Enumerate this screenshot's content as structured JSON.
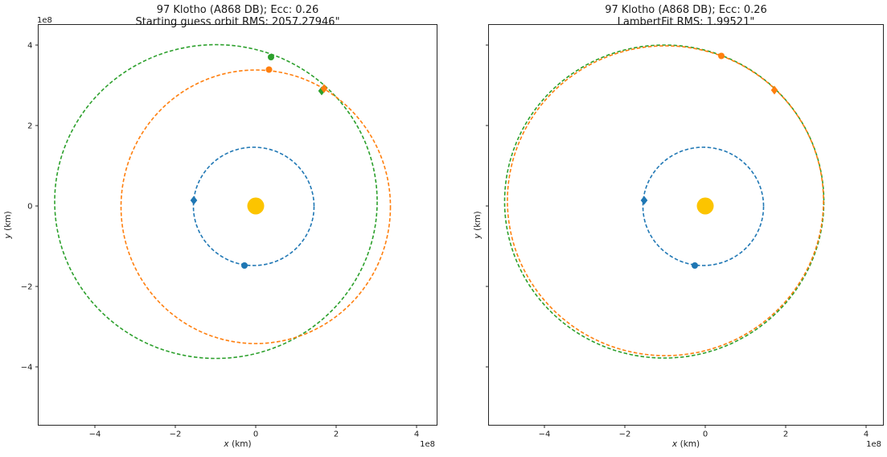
{
  "figure": {
    "background": "#ffffff",
    "asteroid_name": "97 Klotho (A868 DB)",
    "eccentricity": "0.26"
  },
  "chart_data": [
    {
      "type": "scatter",
      "title": [
        "97 Klotho (A868 DB); Ecc: 0.26",
        "Starting guess orbit RMS: 2057.27946\""
      ],
      "xlabel_var": "x",
      "xlabel_unit": "(km)",
      "ylabel_var": "y",
      "ylabel_unit": "(km)",
      "x_offset_label": "1e8",
      "y_offset_label": "1e8",
      "units": "km",
      "units_multiplier": "1e8",
      "grid": false,
      "legend": null,
      "xlim": [
        -5.41,
        4.51
      ],
      "ylim": [
        -5.45,
        4.51
      ],
      "x_ticks": [
        {
          "v": -4,
          "label": "−4"
        },
        {
          "v": -2,
          "label": "−2"
        },
        {
          "v": 0,
          "label": "0"
        },
        {
          "v": 2,
          "label": "2"
        },
        {
          "v": 4,
          "label": "4"
        }
      ],
      "y_ticks": [
        {
          "v": -4,
          "label": "−4"
        },
        {
          "v": -2,
          "label": "−2"
        },
        {
          "v": 0,
          "label": "0"
        },
        {
          "v": 2,
          "label": "2"
        },
        {
          "v": 4,
          "label": "4"
        }
      ],
      "show_y_tick_labels": true,
      "orbits": [
        {
          "name": "earth-orbit",
          "color": "#1f77b4",
          "cx": -0.05,
          "cy": -0.01,
          "rx": 1.5,
          "ry": 1.47
        },
        {
          "name": "true-orbit",
          "color": "#2ca02c",
          "cx": -0.99,
          "cy": 0.11,
          "rx": 4.01,
          "ry": 3.9
        },
        {
          "name": "guess-orbit",
          "color": "#ff7f0e",
          "cx": 0.0,
          "cy": -0.02,
          "rx": 3.35,
          "ry": 3.4
        }
      ],
      "markers": [
        {
          "name": "sun",
          "shape": "sun",
          "color": "#fcc400",
          "x": 0,
          "y": 0
        },
        {
          "name": "earth-obs1-diamond",
          "shape": "diamond",
          "color": "#1f77b4",
          "x": -1.54,
          "y": 0.14
        },
        {
          "name": "earth-obs2-dot",
          "shape": "dot",
          "color": "#1f77b4",
          "x": -0.28,
          "y": -1.48
        },
        {
          "name": "true-orbit-dot",
          "shape": "dot",
          "color": "#2ca02c",
          "x": 0.38,
          "y": 3.7
        },
        {
          "name": "guess-orbit-dot",
          "shape": "dot",
          "color": "#ff7f0e",
          "x": 0.33,
          "y": 3.39
        },
        {
          "name": "true-orbit-diamond",
          "shape": "diamond",
          "color": "#2ca02c",
          "x": 1.64,
          "y": 2.86
        },
        {
          "name": "guess-orbit-diamond",
          "shape": "diamond",
          "color": "#ff7f0e",
          "x": 1.7,
          "y": 2.92
        }
      ]
    },
    {
      "type": "scatter",
      "title": [
        "97 Klotho (A868 DB); Ecc: 0.26",
        "LambertFit RMS: 1.99521\""
      ],
      "xlabel_var": "x",
      "xlabel_unit": "(km)",
      "ylabel_var": "y",
      "ylabel_unit": "(km)",
      "x_offset_label": "1e8",
      "units": "km",
      "units_multiplier": "1e8",
      "grid": false,
      "legend": null,
      "xlim": [
        -5.39,
        4.43
      ],
      "ylim": [
        -5.45,
        4.51
      ],
      "x_ticks": [
        {
          "v": -4,
          "label": "−4"
        },
        {
          "v": -2,
          "label": "−2"
        },
        {
          "v": 0,
          "label": "0"
        },
        {
          "v": 2,
          "label": "2"
        },
        {
          "v": 4,
          "label": "4"
        }
      ],
      "y_ticks": [
        {
          "v": -4,
          "label": "−4"
        },
        {
          "v": -2,
          "label": "−2"
        },
        {
          "v": 0,
          "label": "0"
        },
        {
          "v": 2,
          "label": "2"
        },
        {
          "v": 4,
          "label": "4"
        }
      ],
      "show_y_tick_labels": false,
      "orbits": [
        {
          "name": "earth-orbit",
          "color": "#1f77b4",
          "cx": -0.05,
          "cy": -0.01,
          "rx": 1.5,
          "ry": 1.47
        },
        {
          "name": "true-orbit",
          "color": "#2ca02c",
          "cx": -1.02,
          "cy": 0.11,
          "rx": 3.97,
          "ry": 3.89
        },
        {
          "name": "lambertfit-orbit",
          "color": "#ff7f0e",
          "cx": -0.99,
          "cy": 0.13,
          "rx": 3.93,
          "ry": 3.85
        }
      ],
      "markers": [
        {
          "name": "sun",
          "shape": "sun",
          "color": "#fcc400",
          "x": 0,
          "y": 0
        },
        {
          "name": "earth-obs1-diamond",
          "shape": "diamond",
          "color": "#1f77b4",
          "x": -1.52,
          "y": 0.14
        },
        {
          "name": "earth-obs2-dot",
          "shape": "dot",
          "color": "#1f77b4",
          "x": -0.26,
          "y": -1.48
        },
        {
          "name": "lambertfit-orbit-dot",
          "shape": "dot",
          "color": "#ff7f0e",
          "x": 0.4,
          "y": 3.73
        },
        {
          "name": "lambertfit-orbit-diamond",
          "shape": "diamond",
          "color": "#ff7f0e",
          "x": 1.72,
          "y": 2.88
        }
      ]
    }
  ]
}
